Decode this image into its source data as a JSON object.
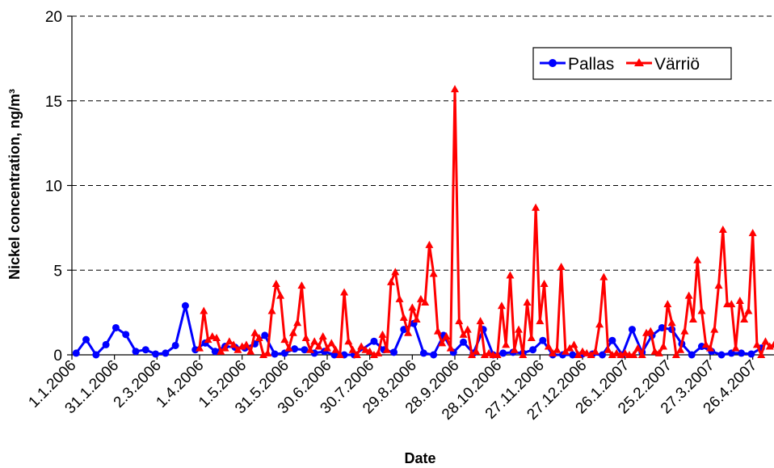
{
  "chart_data": {
    "type": "line",
    "title": "",
    "xlabel": "Date",
    "ylabel": "Nickel concentration, ng/m³",
    "ylim": [
      0,
      20
    ],
    "y_ticks": [
      0,
      5,
      10,
      15,
      20
    ],
    "x_range": [
      "2006-01-01",
      "2007-05-11"
    ],
    "x_tick_labels": [
      "1.1.2006",
      "31.1.2006",
      "2.3.2006",
      "1.4.2006",
      "1.5.2006",
      "31.5.2006",
      "30.6.2006",
      "30.7.2006",
      "29.8.2006",
      "28.9.2006",
      "28.10.2006",
      "27.11.2006",
      "27.12.2006",
      "26.1.2007",
      "25.2.2007",
      "27.3.2007",
      "26.4.2007"
    ],
    "x_tick_dates": [
      "2006-01-01",
      "2006-01-31",
      "2006-03-02",
      "2006-04-01",
      "2006-05-01",
      "2006-05-31",
      "2006-06-30",
      "2006-07-30",
      "2006-08-29",
      "2006-09-28",
      "2006-10-28",
      "2006-11-27",
      "2006-12-27",
      "2007-01-26",
      "2007-02-25",
      "2007-03-27",
      "2007-04-26"
    ],
    "grid": "horizontal dashed",
    "legend_position": "top-right",
    "series": [
      {
        "name": "Pallas",
        "color": "#0000ff",
        "marker": "circle",
        "points": [
          [
            "2006-01-04",
            0.1
          ],
          [
            "2006-01-11",
            0.9
          ],
          [
            "2006-01-18",
            0.0
          ],
          [
            "2006-01-25",
            0.6
          ],
          [
            "2006-02-01",
            1.6
          ],
          [
            "2006-02-08",
            1.2
          ],
          [
            "2006-02-15",
            0.2
          ],
          [
            "2006-02-22",
            0.3
          ],
          [
            "2006-03-01",
            0.05
          ],
          [
            "2006-03-08",
            0.1
          ],
          [
            "2006-03-15",
            0.55
          ],
          [
            "2006-03-22",
            2.9
          ],
          [
            "2006-03-29",
            0.3
          ],
          [
            "2006-04-05",
            0.7
          ],
          [
            "2006-04-12",
            0.2
          ],
          [
            "2006-04-19",
            0.5
          ],
          [
            "2006-04-26",
            0.45
          ],
          [
            "2006-05-03",
            0.4
          ],
          [
            "2006-05-10",
            0.65
          ],
          [
            "2006-05-17",
            1.15
          ],
          [
            "2006-05-24",
            0.05
          ],
          [
            "2006-05-31",
            0.1
          ],
          [
            "2006-06-07",
            0.35
          ],
          [
            "2006-06-14",
            0.3
          ],
          [
            "2006-06-21",
            0.1
          ],
          [
            "2006-06-28",
            0.2
          ],
          [
            "2006-07-05",
            0.0
          ],
          [
            "2006-07-12",
            0.0
          ],
          [
            "2006-07-19",
            0.0
          ],
          [
            "2006-08-02",
            0.8
          ],
          [
            "2006-08-09",
            0.3
          ],
          [
            "2006-08-16",
            0.15
          ],
          [
            "2006-08-23",
            1.5
          ],
          [
            "2006-08-30",
            1.85
          ],
          [
            "2006-09-06",
            0.1
          ],
          [
            "2006-09-13",
            0.0
          ],
          [
            "2006-09-20",
            1.15
          ],
          [
            "2006-09-27",
            0.15
          ],
          [
            "2006-10-04",
            0.75
          ],
          [
            "2006-10-11",
            0.1
          ],
          [
            "2006-10-18",
            1.5
          ],
          [
            "2006-10-25",
            0.0
          ],
          [
            "2006-11-01",
            0.1
          ],
          [
            "2006-11-08",
            0.15
          ],
          [
            "2006-11-15",
            0.1
          ],
          [
            "2006-11-22",
            0.3
          ],
          [
            "2006-11-29",
            0.85
          ],
          [
            "2006-12-06",
            0.0
          ],
          [
            "2006-12-13",
            0.0
          ],
          [
            "2006-12-20",
            0.0
          ],
          [
            "2006-12-27",
            0.05
          ],
          [
            "2007-01-03",
            0.05
          ],
          [
            "2007-01-10",
            0.0
          ],
          [
            "2007-01-17",
            0.85
          ],
          [
            "2007-01-24",
            0.0
          ],
          [
            "2007-01-31",
            1.5
          ],
          [
            "2007-02-07",
            0.15
          ],
          [
            "2007-02-14",
            1.15
          ],
          [
            "2007-02-21",
            1.6
          ],
          [
            "2007-02-28",
            1.5
          ],
          [
            "2007-03-07",
            0.65
          ],
          [
            "2007-03-14",
            0.0
          ],
          [
            "2007-03-21",
            0.5
          ],
          [
            "2007-03-28",
            0.2
          ],
          [
            "2007-04-04",
            0.0
          ],
          [
            "2007-04-11",
            0.1
          ],
          [
            "2007-04-18",
            0.1
          ],
          [
            "2007-04-25",
            0.05
          ],
          [
            "2007-05-02",
            0.4
          ]
        ]
      },
      {
        "name": "Värriö",
        "color": "#ff0000",
        "marker": "triangle",
        "points": [
          [
            "2006-04-01",
            0.4
          ],
          [
            "2006-04-04",
            2.6
          ],
          [
            "2006-04-07",
            0.9
          ],
          [
            "2006-04-10",
            1.1
          ],
          [
            "2006-04-13",
            1.0
          ],
          [
            "2006-04-16",
            0.2
          ],
          [
            "2006-04-19",
            0.4
          ],
          [
            "2006-04-22",
            0.8
          ],
          [
            "2006-04-25",
            0.6
          ],
          [
            "2006-04-28",
            0.3
          ],
          [
            "2006-05-01",
            0.5
          ],
          [
            "2006-05-04",
            0.6
          ],
          [
            "2006-05-07",
            0.2
          ],
          [
            "2006-05-10",
            1.3
          ],
          [
            "2006-05-13",
            1.0
          ],
          [
            "2006-05-16",
            0.0
          ],
          [
            "2006-05-19",
            0.1
          ],
          [
            "2006-05-22",
            2.6
          ],
          [
            "2006-05-25",
            4.2
          ],
          [
            "2006-05-28",
            3.5
          ],
          [
            "2006-05-31",
            0.9
          ],
          [
            "2006-06-03",
            0.4
          ],
          [
            "2006-06-06",
            1.3
          ],
          [
            "2006-06-09",
            1.9
          ],
          [
            "2006-06-12",
            4.1
          ],
          [
            "2006-06-15",
            1.0
          ],
          [
            "2006-06-18",
            0.3
          ],
          [
            "2006-06-21",
            0.8
          ],
          [
            "2006-06-24",
            0.5
          ],
          [
            "2006-06-27",
            1.1
          ],
          [
            "2006-06-30",
            0.4
          ],
          [
            "2006-07-03",
            0.7
          ],
          [
            "2006-07-06",
            0.3
          ],
          [
            "2006-07-09",
            0.0
          ],
          [
            "2006-07-12",
            3.7
          ],
          [
            "2006-07-15",
            0.8
          ],
          [
            "2006-07-18",
            0.3
          ],
          [
            "2006-07-21",
            0.0
          ],
          [
            "2006-07-24",
            0.5
          ],
          [
            "2006-07-27",
            0.3
          ],
          [
            "2006-07-30",
            0.2
          ],
          [
            "2006-08-02",
            0.0
          ],
          [
            "2006-08-05",
            0.1
          ],
          [
            "2006-08-08",
            1.2
          ],
          [
            "2006-08-11",
            0.3
          ],
          [
            "2006-08-14",
            4.3
          ],
          [
            "2006-08-17",
            4.9
          ],
          [
            "2006-08-20",
            3.3
          ],
          [
            "2006-08-23",
            2.2
          ],
          [
            "2006-08-26",
            1.3
          ],
          [
            "2006-08-29",
            2.8
          ],
          [
            "2006-09-01",
            2.1
          ],
          [
            "2006-09-04",
            3.3
          ],
          [
            "2006-09-07",
            3.1
          ],
          [
            "2006-09-10",
            6.5
          ],
          [
            "2006-09-13",
            4.8
          ],
          [
            "2006-09-16",
            1.4
          ],
          [
            "2006-09-19",
            0.7
          ],
          [
            "2006-09-22",
            1.1
          ],
          [
            "2006-09-25",
            0.4
          ],
          [
            "2006-09-28",
            15.7
          ],
          [
            "2006-10-01",
            2.0
          ],
          [
            "2006-10-04",
            1.2
          ],
          [
            "2006-10-07",
            1.5
          ],
          [
            "2006-10-10",
            0.0
          ],
          [
            "2006-10-13",
            0.2
          ],
          [
            "2006-10-16",
            2.0
          ],
          [
            "2006-10-19",
            0.0
          ],
          [
            "2006-10-22",
            0.1
          ],
          [
            "2006-10-25",
            0.0
          ],
          [
            "2006-10-28",
            0.0
          ],
          [
            "2006-10-31",
            2.9
          ],
          [
            "2006-11-03",
            0.6
          ],
          [
            "2006-11-06",
            4.7
          ],
          [
            "2006-11-09",
            0.3
          ],
          [
            "2006-11-12",
            1.5
          ],
          [
            "2006-11-15",
            0.0
          ],
          [
            "2006-11-18",
            3.1
          ],
          [
            "2006-11-21",
            1.0
          ],
          [
            "2006-11-24",
            8.7
          ],
          [
            "2006-11-27",
            2.0
          ],
          [
            "2006-11-30",
            4.2
          ],
          [
            "2006-12-03",
            0.5
          ],
          [
            "2006-12-06",
            0.1
          ],
          [
            "2006-12-09",
            0.3
          ],
          [
            "2006-12-12",
            5.2
          ],
          [
            "2006-12-15",
            0.2
          ],
          [
            "2006-12-18",
            0.4
          ],
          [
            "2006-12-21",
            0.6
          ],
          [
            "2006-12-24",
            0.0
          ],
          [
            "2006-12-27",
            0.2
          ],
          [
            "2006-12-30",
            0.1
          ],
          [
            "2007-01-02",
            0.0
          ],
          [
            "2007-01-05",
            0.2
          ],
          [
            "2007-01-08",
            1.8
          ],
          [
            "2007-01-11",
            4.6
          ],
          [
            "2007-01-14",
            0.3
          ],
          [
            "2007-01-17",
            0.0
          ],
          [
            "2007-01-20",
            0.1
          ],
          [
            "2007-01-23",
            0.0
          ],
          [
            "2007-01-26",
            0.1
          ],
          [
            "2007-01-29",
            0.0
          ],
          [
            "2007-02-01",
            0.0
          ],
          [
            "2007-02-04",
            0.4
          ],
          [
            "2007-02-07",
            0.0
          ],
          [
            "2007-02-10",
            1.3
          ],
          [
            "2007-02-13",
            1.4
          ],
          [
            "2007-02-16",
            0.2
          ],
          [
            "2007-02-19",
            0.1
          ],
          [
            "2007-02-22",
            0.5
          ],
          [
            "2007-02-25",
            3.0
          ],
          [
            "2007-02-28",
            1.9
          ],
          [
            "2007-03-03",
            0.0
          ],
          [
            "2007-03-06",
            0.3
          ],
          [
            "2007-03-09",
            1.4
          ],
          [
            "2007-03-12",
            3.5
          ],
          [
            "2007-03-15",
            2.1
          ],
          [
            "2007-03-18",
            5.6
          ],
          [
            "2007-03-21",
            2.6
          ],
          [
            "2007-03-24",
            0.6
          ],
          [
            "2007-03-27",
            0.4
          ],
          [
            "2007-03-30",
            1.5
          ],
          [
            "2007-04-02",
            4.1
          ],
          [
            "2007-04-05",
            7.4
          ],
          [
            "2007-04-08",
            3.0
          ],
          [
            "2007-04-11",
            3.0
          ],
          [
            "2007-04-14",
            0.4
          ],
          [
            "2007-04-17",
            3.2
          ],
          [
            "2007-04-20",
            2.1
          ],
          [
            "2007-04-23",
            2.6
          ],
          [
            "2007-04-26",
            7.2
          ],
          [
            "2007-04-29",
            0.6
          ],
          [
            "2007-05-02",
            0.0
          ],
          [
            "2007-05-05",
            0.8
          ],
          [
            "2007-05-08",
            0.5
          ],
          [
            "2007-05-11",
            0.6
          ]
        ]
      }
    ]
  }
}
